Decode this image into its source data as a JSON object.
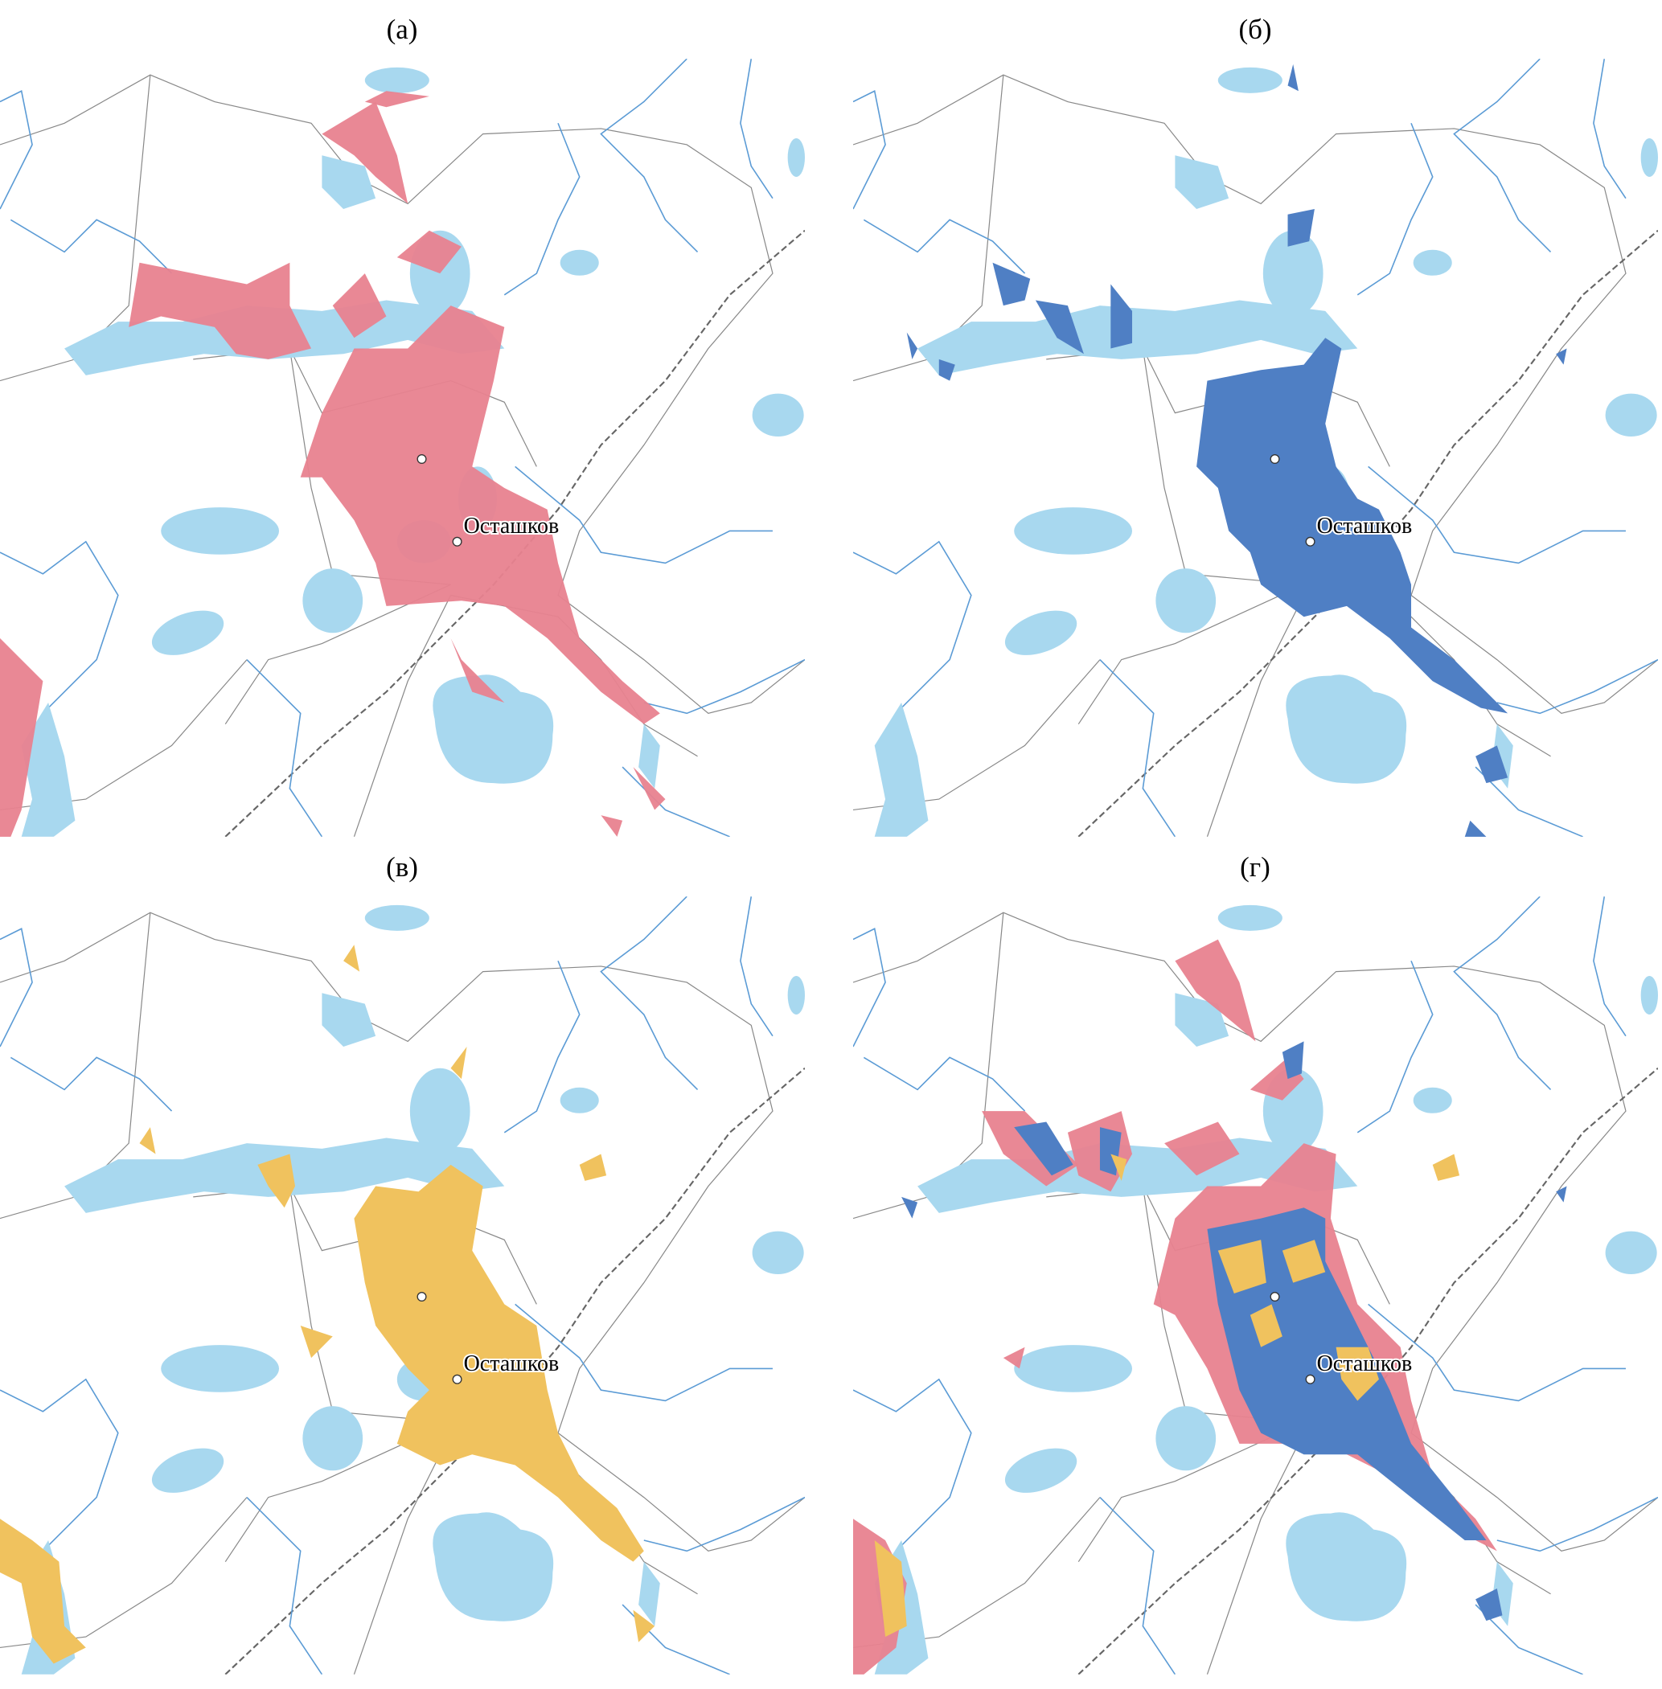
{
  "panels": [
    {
      "label": "(а)",
      "city": "Осташков"
    },
    {
      "label": "(б)",
      "city": "Осташков"
    },
    {
      "label": "(в)",
      "city": "Осташков"
    },
    {
      "label": "(г)",
      "city": "Осташков"
    }
  ]
}
